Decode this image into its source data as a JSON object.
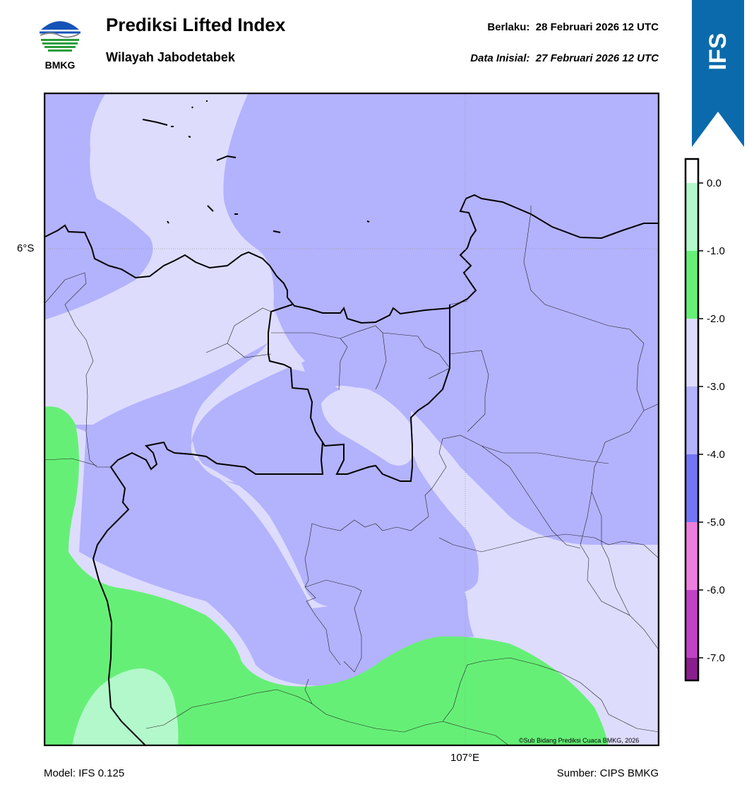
{
  "header": {
    "logo_text": "BMKG",
    "title": "Prediksi Lifted Index",
    "subtitle": "Wilayah Jabodetabek",
    "valid_label": "Berlaku:",
    "valid_time": "28 Februari 2026 12 UTC",
    "init_label": "Data Inisial:",
    "init_time": "27 Februari 2026 12 UTC"
  },
  "banner": {
    "text": "IFS",
    "color": "#0b6aac"
  },
  "map": {
    "lat_label": "6°S",
    "lon_label": "107°E",
    "credit": "©Sub Bidang Prediksi Cuaca BMKG, 2026"
  },
  "footer": {
    "model": "Model: IFS 0.125",
    "source": "Sumber: CIPS BMKG"
  },
  "legend": {
    "ticks": [
      "0.0",
      "-1.0",
      "-2.0",
      "-3.0",
      "-4.0",
      "-5.0",
      "-6.0",
      "-7.0"
    ],
    "colors": [
      "#ffffff",
      "#b3f8cb",
      "#66ef77",
      "#dddcfd",
      "#b3b2fd",
      "#7276f4",
      "#ee7ede",
      "#c142c5",
      "#8a1e8e"
    ]
  }
}
